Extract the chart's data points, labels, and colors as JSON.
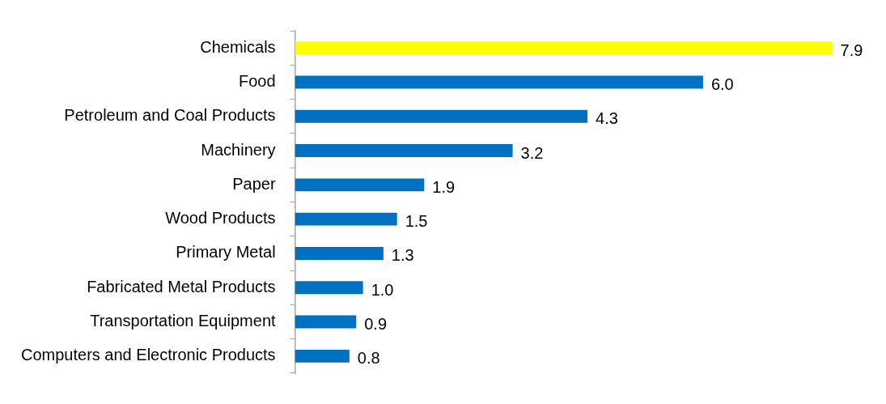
{
  "chart_data": {
    "type": "bar",
    "orientation": "horizontal",
    "categories": [
      "Chemicals",
      "Food",
      "Petroleum and Coal Products",
      "Machinery",
      "Paper",
      "Wood Products",
      "Primary Metal",
      "Fabricated Metal Products",
      "Transportation Equipment",
      "Computers and Electronic Products"
    ],
    "values": [
      7.9,
      6.0,
      4.3,
      3.2,
      1.9,
      1.5,
      1.3,
      1.0,
      0.9,
      0.8
    ],
    "value_labels": [
      "7.9",
      "6.0",
      "4.3",
      "3.2",
      "1.9",
      "1.5",
      "1.3",
      "1.0",
      "0.9",
      "0.8"
    ],
    "colors": [
      "#ffff00",
      "#0070c0",
      "#0070c0",
      "#0070c0",
      "#0070c0",
      "#0070c0",
      "#0070c0",
      "#0070c0",
      "#0070c0",
      "#0070c0"
    ],
    "grid": false,
    "legend": false
  }
}
